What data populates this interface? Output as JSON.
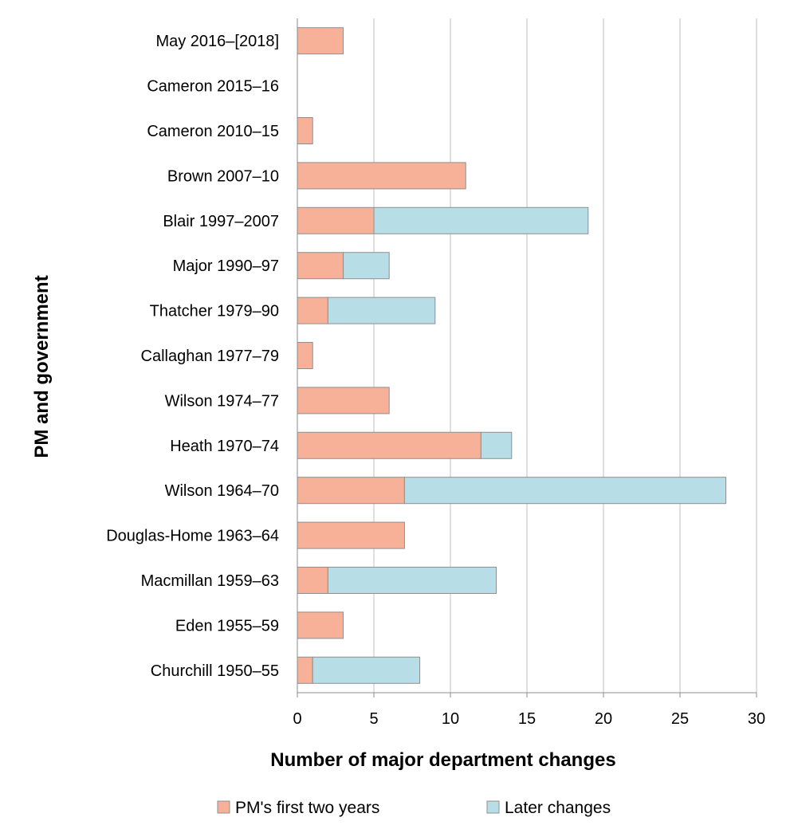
{
  "chart_data": {
    "type": "bar",
    "orientation": "horizontal",
    "stacked": true,
    "categories": [
      "May  2016–[2018]",
      "Cameron 2015–16",
      "Cameron 2010–15",
      "Brown 2007–10",
      "Blair 1997–2007",
      "Major 1990–97",
      "Thatcher 1979–90",
      "Callaghan 1977–79",
      "Wilson 1974–77",
      "Heath  1970–74",
      "Wilson 1964–70",
      "Douglas-Home  1963–64",
      "Macmillan 1959–63",
      "Eden 1955–59",
      "Churchill 1950–55"
    ],
    "series": [
      {
        "name": "PM's first two years",
        "color": "#f7b198",
        "values": [
          3,
          0,
          1,
          11,
          5,
          3,
          2,
          1,
          6,
          12,
          7,
          7,
          2,
          3,
          1
        ]
      },
      {
        "name": "Later changes",
        "color": "#b7dee6",
        "values": [
          0,
          0,
          0,
          0,
          14,
          3,
          7,
          0,
          0,
          2,
          21,
          0,
          11,
          0,
          7
        ]
      }
    ],
    "xlabel": "Number of major department changes",
    "ylabel": "PM and government",
    "xlim": [
      0,
      30
    ],
    "xticks": [
      0,
      5,
      10,
      15,
      20,
      25,
      30
    ],
    "grid": "vertical",
    "legend": "bottom"
  }
}
